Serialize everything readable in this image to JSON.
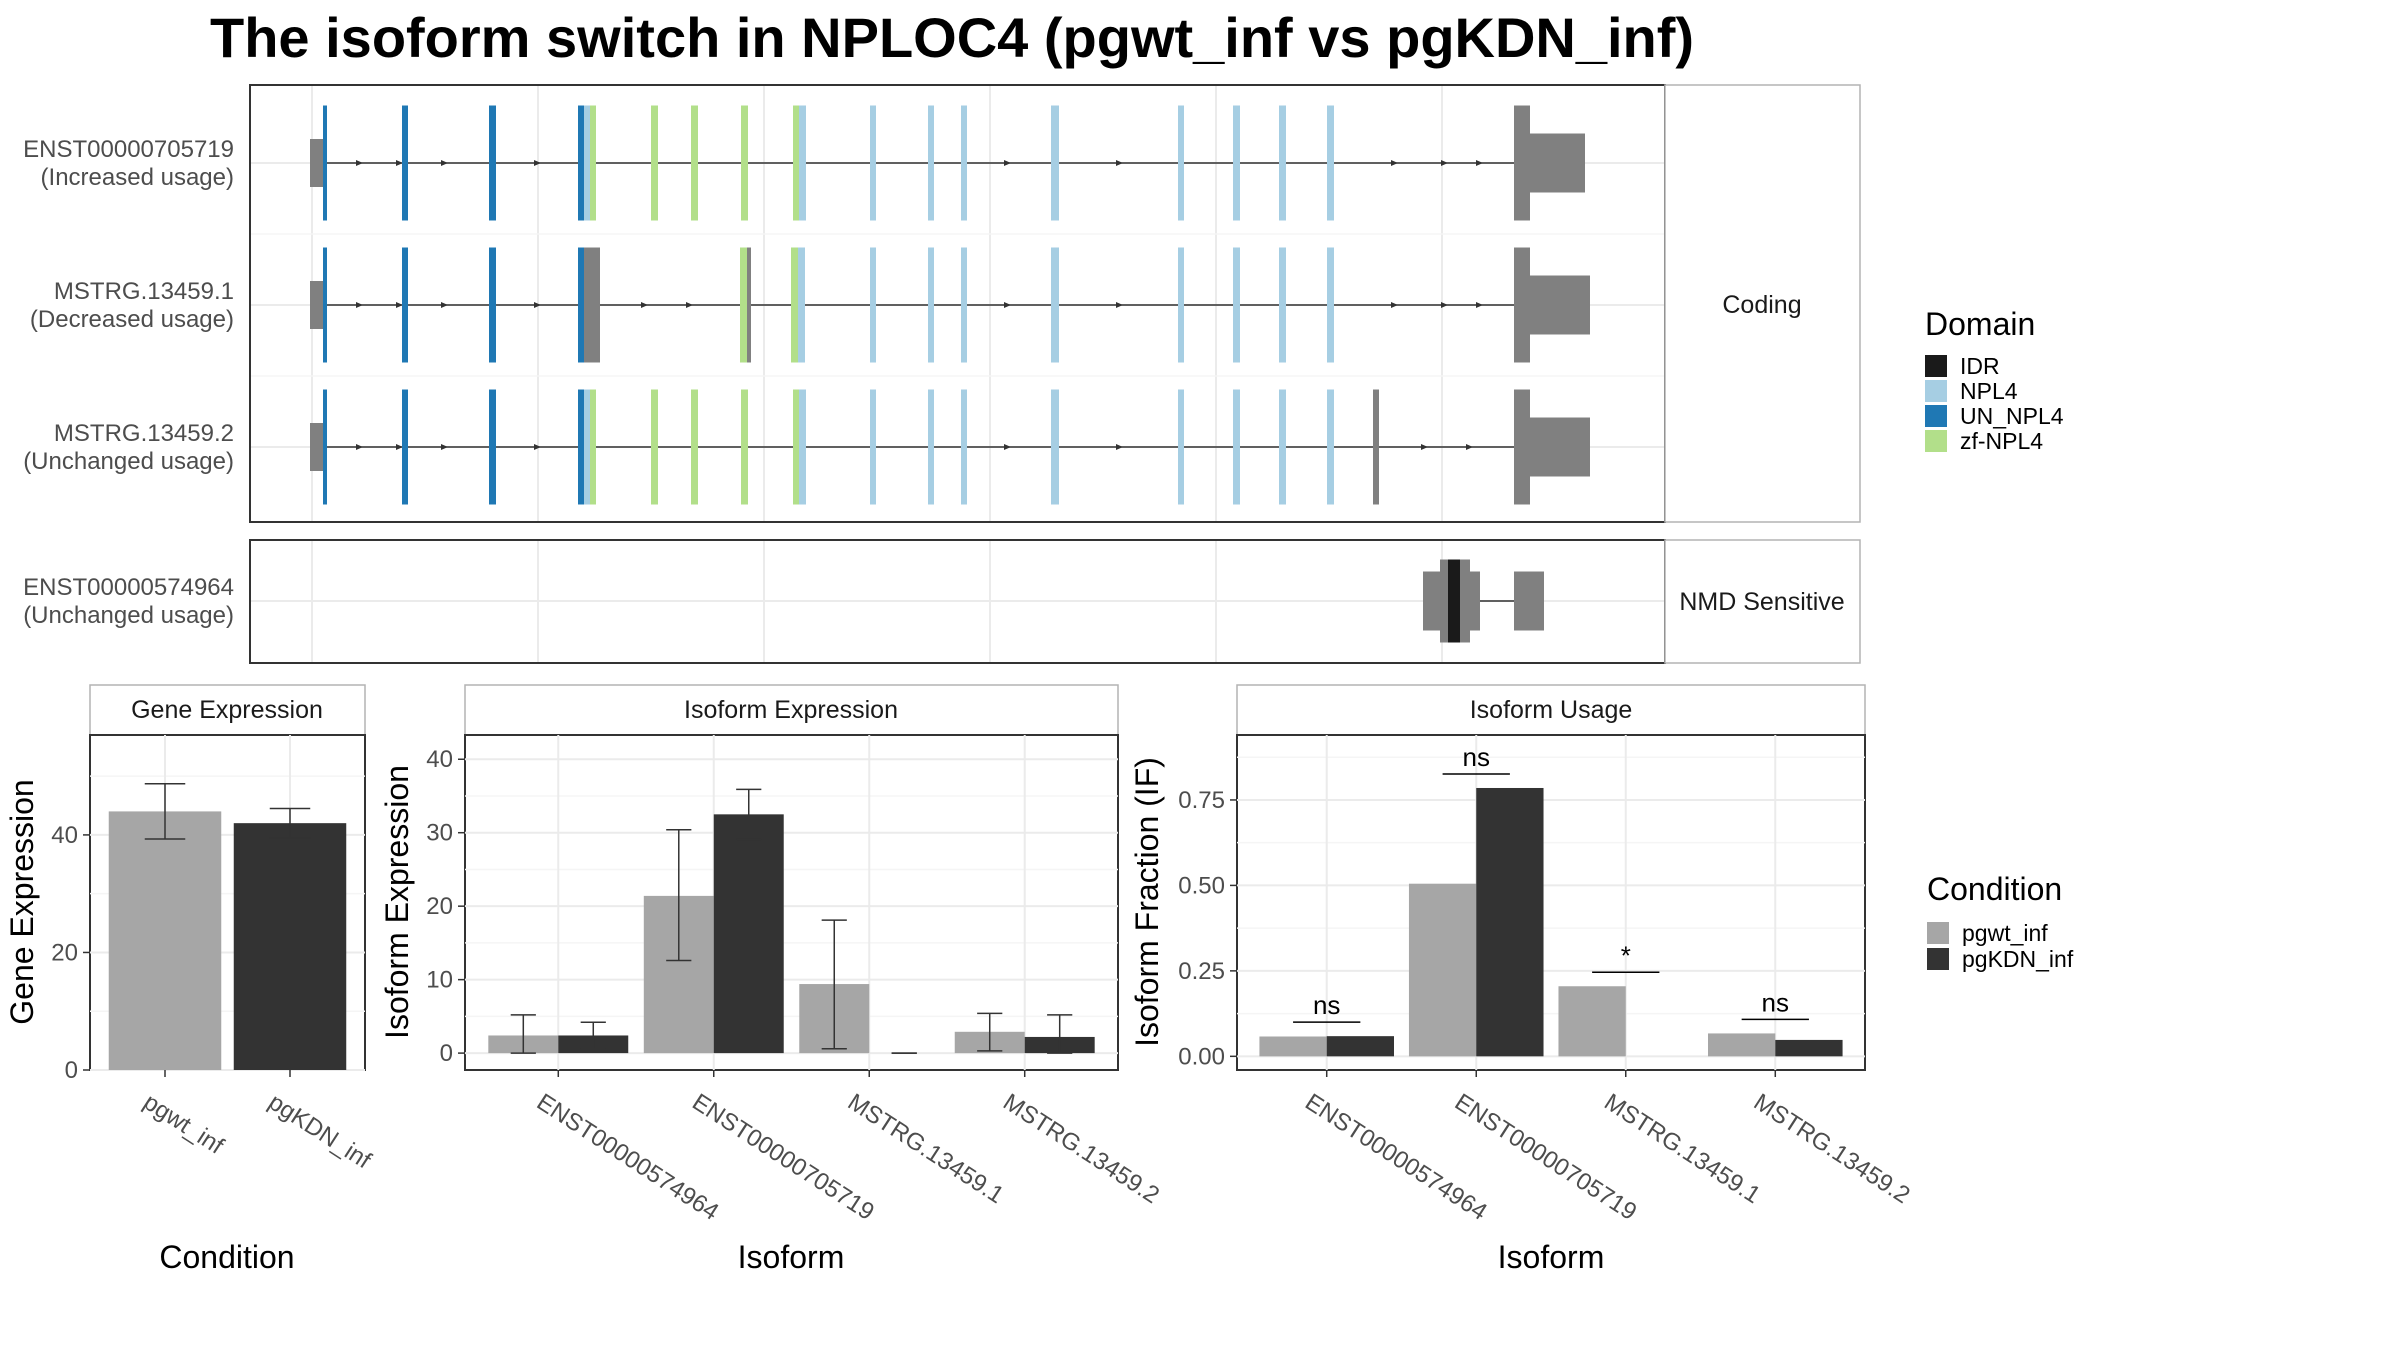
{
  "title": "The isoform switch in NPLOC4 (pgwt_inf vs pgKDN_inf)",
  "colors": {
    "IDR": "#1a1a1a",
    "NPL4": "#a6cee3",
    "UN_NPL4": "#1f78b4",
    "zf-NPL4": "#b2df8a",
    "utr": "#808080",
    "pgwt_inf": "#a6a6a6",
    "pgKDN_inf": "#333333"
  },
  "structure": {
    "panels": [
      {
        "strip": "Coding",
        "transcripts": [
          {
            "id": "ENST00000705719",
            "usage": "(Increased usage)"
          },
          {
            "id": "MSTRG.13459.1",
            "usage": "(Decreased usage)"
          },
          {
            "id": "MSTRG.13459.2",
            "usage": "(Unchanged usage)"
          }
        ]
      },
      {
        "strip": "NMD Sensitive",
        "transcripts": [
          {
            "id": "ENST00000574964",
            "usage": "(Unchanged usage)"
          }
        ]
      }
    ]
  },
  "legends": {
    "domain": {
      "title": "Domain",
      "items": [
        "IDR",
        "NPL4",
        "UN_NPL4",
        "zf-NPL4"
      ]
    },
    "condition": {
      "title": "Condition",
      "items": [
        "pgwt_inf",
        "pgKDN_inf"
      ]
    }
  },
  "chart_data": [
    {
      "type": "bar",
      "title": "Gene Expression",
      "xlabel": "Condition",
      "ylabel": "Gene Expression",
      "categories": [
        "pgwt_inf",
        "pgKDN_inf"
      ],
      "values": [
        44,
        42
      ],
      "error_low": [
        39.3,
        39.5
      ],
      "error_high": [
        48.7,
        44.5
      ],
      "ylim": [
        0,
        57
      ],
      "yticks": [
        0,
        20,
        40
      ],
      "ytick_labels": [
        "0",
        "20",
        "40"
      ],
      "grid": true
    },
    {
      "type": "bar",
      "title": "Isoform Expression",
      "xlabel": "Isoform",
      "ylabel": "Isoform Expression",
      "categories": [
        "ENST00000574964",
        "ENST00000705719",
        "MSTRG.13459.1",
        "MSTRG.13459.2"
      ],
      "series": [
        {
          "name": "pgwt_inf",
          "values": [
            2.4,
            21.4,
            9.4,
            2.9
          ],
          "error_low": [
            0,
            12.6,
            0.6,
            0.3
          ],
          "error_high": [
            5.2,
            30.4,
            18.1,
            5.4
          ]
        },
        {
          "name": "pgKDN_inf",
          "values": [
            2.4,
            32.5,
            0,
            2.2
          ],
          "error_low": [
            0.6,
            29.1,
            0,
            0
          ],
          "error_high": [
            4.2,
            35.9,
            0,
            5.2
          ]
        }
      ],
      "ylim": [
        -2.3,
        43.3
      ],
      "yticks": [
        0,
        10,
        20,
        30,
        40
      ],
      "ytick_labels": [
        "0",
        "10",
        "20",
        "30",
        "40"
      ],
      "grid": true
    },
    {
      "type": "bar",
      "title": "Isoform Usage",
      "xlabel": "Isoform",
      "ylabel": "Isoform Fraction (IF)",
      "categories": [
        "ENST00000574964",
        "ENST00000705719",
        "MSTRG.13459.1",
        "MSTRG.13459.2"
      ],
      "series": [
        {
          "name": "pgwt_inf",
          "values": [
            0.058,
            0.505,
            0.205,
            0.067
          ]
        },
        {
          "name": "pgKDN_inf",
          "values": [
            0.059,
            0.785,
            0.0,
            0.048
          ]
        }
      ],
      "significance": [
        "ns",
        "ns",
        "*",
        "ns"
      ],
      "ylim": [
        -0.04,
        0.94
      ],
      "yticks": [
        0,
        0.25,
        0.5,
        0.75
      ],
      "ytick_labels": [
        "0.00",
        "0.25",
        "0.50",
        "0.75"
      ],
      "grid": true
    }
  ]
}
